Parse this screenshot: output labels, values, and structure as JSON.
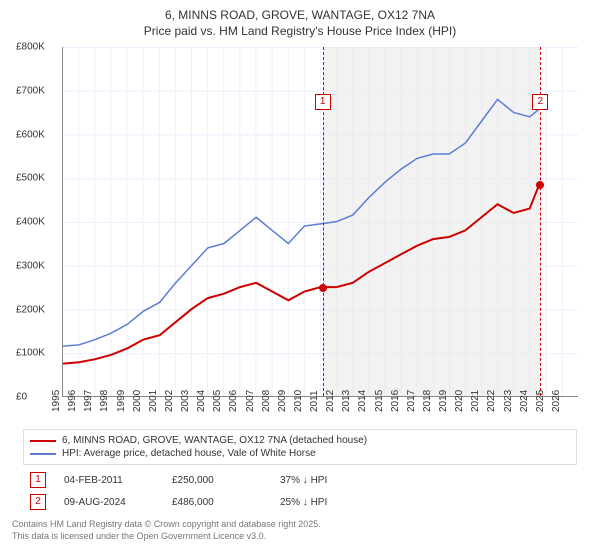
{
  "title_line1": "6, MINNS ROAD, GROVE, WANTAGE, OX12 7NA",
  "title_line2": "Price paid vs. HM Land Registry's House Price Index (HPI)",
  "chart": {
    "type": "line",
    "x": {
      "min": 1995,
      "max": 2027,
      "ticks": [
        1995,
        1996,
        1997,
        1998,
        1999,
        2000,
        2001,
        2002,
        2003,
        2004,
        2005,
        2006,
        2007,
        2008,
        2009,
        2010,
        2011,
        2012,
        2013,
        2014,
        2015,
        2016,
        2017,
        2018,
        2019,
        2020,
        2021,
        2022,
        2023,
        2024,
        2025,
        2026
      ]
    },
    "y": {
      "min": 0,
      "max": 800000,
      "ticks": [
        {
          "v": 0,
          "l": "£0"
        },
        {
          "v": 100000,
          "l": "£100K"
        },
        {
          "v": 200000,
          "l": "£200K"
        },
        {
          "v": 300000,
          "l": "£300K"
        },
        {
          "v": 400000,
          "l": "£400K"
        },
        {
          "v": 500000,
          "l": "£500K"
        },
        {
          "v": 600000,
          "l": "£600K"
        },
        {
          "v": 700000,
          "l": "£700K"
        },
        {
          "v": 800000,
          "l": "£800K"
        }
      ]
    },
    "band": {
      "from": 2011.1,
      "to": 2024.6,
      "color": "#e8e8e8"
    },
    "vlines": [
      {
        "x": 2011.1,
        "flag": "1"
      },
      {
        "x": 2024.6,
        "flag": "2"
      }
    ],
    "markers": [
      {
        "x": 2011.1,
        "y": 250000
      },
      {
        "x": 2024.6,
        "y": 486000
      }
    ],
    "series": [
      {
        "name": "price",
        "label": "6, MINNS ROAD, GROVE, WANTAGE, OX12 7NA (detached house)",
        "color": "#cc0000",
        "width": 2,
        "points": [
          [
            1995,
            75000
          ],
          [
            1996,
            78000
          ],
          [
            1997,
            85000
          ],
          [
            1998,
            95000
          ],
          [
            1999,
            110000
          ],
          [
            2000,
            130000
          ],
          [
            2001,
            140000
          ],
          [
            2002,
            170000
          ],
          [
            2003,
            200000
          ],
          [
            2004,
            225000
          ],
          [
            2005,
            235000
          ],
          [
            2006,
            250000
          ],
          [
            2007,
            260000
          ],
          [
            2008,
            240000
          ],
          [
            2009,
            220000
          ],
          [
            2010,
            240000
          ],
          [
            2011,
            250000
          ],
          [
            2012,
            250000
          ],
          [
            2013,
            260000
          ],
          [
            2014,
            285000
          ],
          [
            2015,
            305000
          ],
          [
            2016,
            325000
          ],
          [
            2017,
            345000
          ],
          [
            2018,
            360000
          ],
          [
            2019,
            365000
          ],
          [
            2020,
            380000
          ],
          [
            2021,
            410000
          ],
          [
            2022,
            440000
          ],
          [
            2023,
            420000
          ],
          [
            2024,
            430000
          ],
          [
            2024.6,
            486000
          ]
        ]
      },
      {
        "name": "hpi",
        "label": "HPI: Average price, detached house, Vale of White Horse",
        "color": "#5b7bd5",
        "width": 1.5,
        "points": [
          [
            1995,
            115000
          ],
          [
            1996,
            118000
          ],
          [
            1997,
            130000
          ],
          [
            1998,
            145000
          ],
          [
            1999,
            165000
          ],
          [
            2000,
            195000
          ],
          [
            2001,
            215000
          ],
          [
            2002,
            260000
          ],
          [
            2003,
            300000
          ],
          [
            2004,
            340000
          ],
          [
            2005,
            350000
          ],
          [
            2006,
            380000
          ],
          [
            2007,
            410000
          ],
          [
            2008,
            380000
          ],
          [
            2009,
            350000
          ],
          [
            2010,
            390000
          ],
          [
            2011,
            395000
          ],
          [
            2012,
            400000
          ],
          [
            2013,
            415000
          ],
          [
            2014,
            455000
          ],
          [
            2015,
            490000
          ],
          [
            2016,
            520000
          ],
          [
            2017,
            545000
          ],
          [
            2018,
            555000
          ],
          [
            2019,
            555000
          ],
          [
            2020,
            580000
          ],
          [
            2021,
            630000
          ],
          [
            2022,
            680000
          ],
          [
            2023,
            650000
          ],
          [
            2024,
            640000
          ],
          [
            2025,
            670000
          ]
        ]
      }
    ],
    "plot": {
      "bg": "#ffffff",
      "grid": "#eef",
      "axis": "#888",
      "fontsize": 10
    }
  },
  "legend_title": "",
  "events": [
    {
      "flag": "1",
      "date": "04-FEB-2011",
      "price": "£250,000",
      "delta": "37% ↓ HPI"
    },
    {
      "flag": "2",
      "date": "09-AUG-2024",
      "price": "£486,000",
      "delta": "25% ↓ HPI"
    }
  ],
  "footer_line1": "Contains HM Land Registry data © Crown copyright and database right 2025.",
  "footer_line2": "This data is licensed under the Open Government Licence v3.0."
}
